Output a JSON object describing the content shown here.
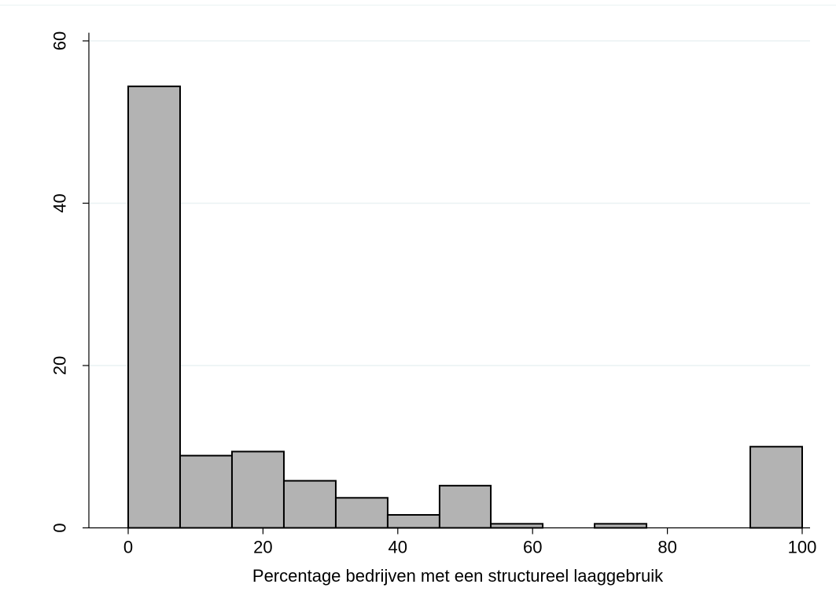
{
  "chart_data": {
    "type": "bar",
    "title": "",
    "xlabel": "Percentage bedrijven met een structureel laaggebruik",
    "ylabel": "",
    "xlim": [
      -6,
      102
    ],
    "ylim": [
      0,
      61
    ],
    "x_ticks": [
      "0",
      "20",
      "40",
      "60",
      "80",
      "100"
    ],
    "y_ticks": [
      "0",
      "20",
      "40",
      "60"
    ],
    "grid": true,
    "bar_fill": "#b3b3b3",
    "bar_stroke": "#000000",
    "grid_color": "#eaf2f3",
    "bins": [
      {
        "start": 0.0,
        "end": 7.7,
        "value": 54.4
      },
      {
        "start": 7.7,
        "end": 15.4,
        "value": 8.9
      },
      {
        "start": 15.4,
        "end": 23.1,
        "value": 9.4
      },
      {
        "start": 23.1,
        "end": 30.8,
        "value": 5.8
      },
      {
        "start": 30.8,
        "end": 38.5,
        "value": 3.7
      },
      {
        "start": 38.5,
        "end": 46.2,
        "value": 1.6
      },
      {
        "start": 46.2,
        "end": 53.8,
        "value": 5.2
      },
      {
        "start": 53.8,
        "end": 61.5,
        "value": 0.5
      },
      {
        "start": 61.5,
        "end": 69.2,
        "value": 0.0
      },
      {
        "start": 69.2,
        "end": 76.9,
        "value": 0.5
      },
      {
        "start": 76.9,
        "end": 84.6,
        "value": 0.0
      },
      {
        "start": 84.6,
        "end": 92.3,
        "value": 0.0
      },
      {
        "start": 92.3,
        "end": 100.0,
        "value": 10.0
      }
    ]
  }
}
